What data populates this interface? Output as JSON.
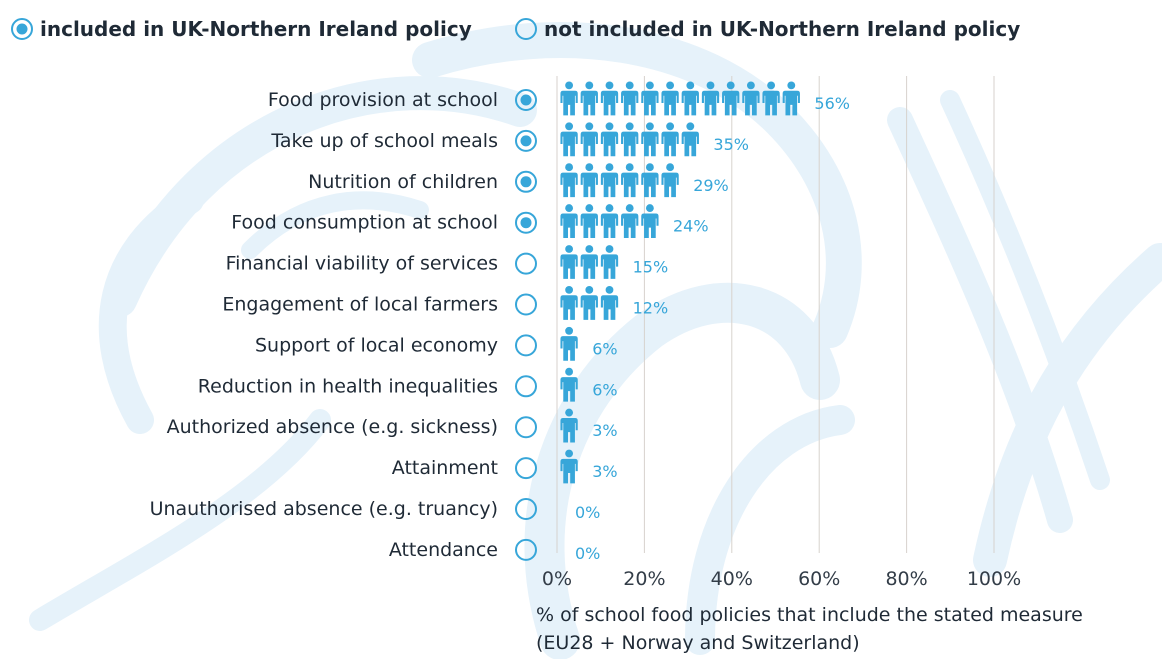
{
  "legend": {
    "included_label": "included in UK-Northern Ireland policy",
    "not_included_label": "not included in UK-Northern Ireland policy"
  },
  "colors": {
    "accent": "#37a6d9",
    "text": "#1f2a36",
    "grid": "#d7d2cd",
    "background_art": "#e6f2fa"
  },
  "icons": {
    "marker": "person-icon",
    "included": "filled-circle-icon",
    "not_included": "empty-circle-icon"
  },
  "chart_data": {
    "type": "bar",
    "style": "pictograph",
    "orientation": "horizontal",
    "categories": [
      "Food provision at school",
      "Take up of school meals",
      "Nutrition of children",
      "Food consumption at school",
      "Financial viability of services",
      "Engagement of local farmers",
      "Support of local economy",
      "Reduction in health inequalities",
      "Authorized absence (e.g. sickness)",
      "Attainment",
      "Unauthorised absence (e.g. truancy)",
      "Attendance"
    ],
    "values": [
      56,
      35,
      29,
      24,
      15,
      12,
      6,
      6,
      3,
      3,
      0,
      0
    ],
    "value_labels": [
      "56%",
      "35%",
      "29%",
      "24%",
      "15%",
      "12%",
      "6%",
      "6%",
      "3%",
      "3%",
      "0%",
      "0%"
    ],
    "included_in_uk_ni": [
      true,
      true,
      true,
      true,
      false,
      false,
      false,
      false,
      false,
      false,
      false,
      false
    ],
    "xlim": [
      0,
      100
    ],
    "xticks": [
      0,
      20,
      40,
      60,
      80,
      100
    ],
    "xtick_labels": [
      "0%",
      "20%",
      "40%",
      "60%",
      "80%",
      "100%"
    ],
    "xlabel_line1": "% of school food policies that include the stated measure",
    "xlabel_line2": "(EU28 + Norway and Switzerland)",
    "grid": true,
    "legend_position": "top"
  }
}
